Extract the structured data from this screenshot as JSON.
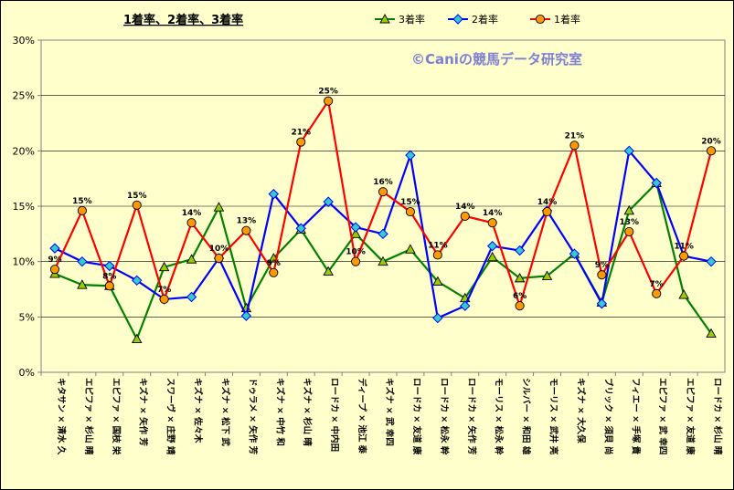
{
  "chart_data": {
    "type": "line",
    "title": "1着率、2着率、3着率",
    "watermark": "©Caniの競馬データ研究室",
    "ylim": [
      0,
      30
    ],
    "yticks": [
      "0%",
      "5%",
      "10%",
      "15%",
      "20%",
      "25%",
      "30%"
    ],
    "grid": "horizontal",
    "legend_position": "top-right",
    "categories": [
      "キタサン × 清水 久",
      "エピファ × 杉山 晴",
      "エピファ × 国枝 栄",
      "キズナ × 矢作 芳",
      "スワーヴ × 庄野 靖",
      "キズナ × 佐々木",
      "キズナ × 松下 武",
      "ドゥラメ × 矢作 芳",
      "キズナ × 中竹 和",
      "キズナ × 杉山 晴",
      "ロードカ × 中内田",
      "ディープ × 池江 泰",
      "キズナ × 武 幸四",
      "ロードカ × 友道 康",
      "ロードカ × 松永 幹",
      "ロードカ × 矢作 芳",
      "モーリス × 松永 幹",
      "シルバー × 和田 雄",
      "モーリス × 武井 亮",
      "キズナ × 大久保",
      "ブリック × 須貝 尚",
      "フィエー × 手塚 貴",
      "エピファ × 武 幸四",
      "エピファ × 友道 康",
      "ロードカ × 杉山 晴"
    ],
    "series": [
      {
        "name": "3着率",
        "color": "#008000",
        "marker": "triangle",
        "marker_fill": "#99cc00",
        "values": [
          8.9,
          7.9,
          7.8,
          3.0,
          9.5,
          10.2,
          14.9,
          5.8,
          10.3,
          12.9,
          9.1,
          12.5,
          10.0,
          11.1,
          8.2,
          6.7,
          10.4,
          8.5,
          8.7,
          10.7,
          6.3,
          14.6,
          17.1,
          7.0,
          3.5
        ]
      },
      {
        "name": "2着率",
        "color": "#0000ff",
        "marker": "diamond",
        "marker_fill": "#33cccc",
        "values": [
          11.2,
          10.0,
          9.6,
          8.3,
          6.6,
          6.8,
          10.3,
          5.1,
          16.1,
          13.0,
          15.4,
          13.1,
          12.5,
          19.6,
          4.9,
          6.0,
          11.4,
          11.0,
          14.6,
          10.7,
          6.2,
          20.0,
          17.1,
          10.5,
          10.0
        ]
      },
      {
        "name": "1着率",
        "color": "#ff0000",
        "marker": "circle",
        "marker_fill": "#ff9900",
        "values": [
          9.3,
          14.6,
          7.8,
          15.1,
          6.6,
          13.5,
          10.3,
          12.8,
          9.0,
          20.8,
          24.5,
          10.0,
          16.3,
          14.5,
          10.6,
          14.1,
          13.5,
          6.0,
          14.5,
          20.5,
          8.8,
          12.7,
          7.1,
          10.5,
          20.0
        ]
      }
    ],
    "data_labels": [
      "9%",
      "15%",
      "8%",
      "15%",
      "7%",
      "14%",
      "10%",
      "13%",
      "9%",
      "21%",
      "25%",
      "10%",
      "16%",
      "15%",
      "11%",
      "14%",
      "14%",
      "6%",
      "14%",
      "21%",
      "9%",
      "13%",
      "7%",
      "11%",
      "20%"
    ]
  }
}
